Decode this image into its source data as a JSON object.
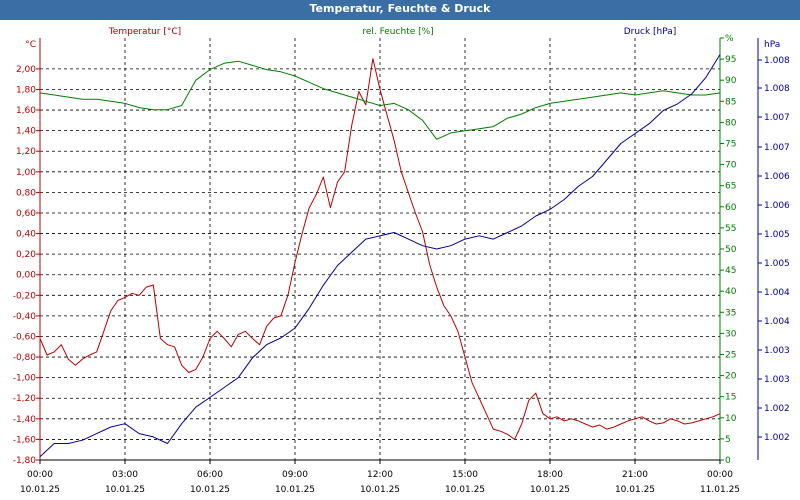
{
  "window": {
    "title": "Temperatur, Feuchte & Druck"
  },
  "chart_data": {
    "type": "line",
    "title": "Temperatur, Feuchte & Druck",
    "grid": true,
    "x_ticks": [
      {
        "time": "00:00",
        "date": "10.01.25"
      },
      {
        "time": "03:00",
        "date": "10.01.25"
      },
      {
        "time": "06:00",
        "date": "10.01.25"
      },
      {
        "time": "09:00",
        "date": "10.01.25"
      },
      {
        "time": "12:00",
        "date": "10.01.25"
      },
      {
        "time": "15:00",
        "date": "10.01.25"
      },
      {
        "time": "18:00",
        "date": "10.01.25"
      },
      {
        "time": "21:00",
        "date": "10.01.25"
      },
      {
        "time": "00:00",
        "date": "11.01.25"
      }
    ],
    "xlim_hours": [
      0,
      24
    ],
    "axes": {
      "temperature": {
        "unit": "°C",
        "label": "Temperatur [°C]",
        "color": "#c00000",
        "ylim": [
          -1.8,
          2.3
        ],
        "ticks": [
          "-1,80",
          "-1,60",
          "-1,40",
          "-1,20",
          "-1,00",
          "-0,80",
          "-0,60",
          "-0,40",
          "-0,20",
          "0,00",
          "0,20",
          "0,40",
          "0,60",
          "0,80",
          "1,00",
          "1,20",
          "1,40",
          "1,60",
          "1,80",
          "2,00"
        ]
      },
      "humidity": {
        "unit": "%",
        "label": "rel. Feuchte [%]",
        "color": "#008000",
        "ylim": [
          0,
          100
        ],
        "ticks": [
          "0",
          "5",
          "10",
          "15",
          "20",
          "25",
          "30",
          "35",
          "40",
          "45",
          "50",
          "55",
          "60",
          "65",
          "70",
          "75",
          "80",
          "85",
          "90",
          "95",
          "%"
        ]
      },
      "pressure": {
        "unit": "hPa",
        "label": "Druck [hPa]",
        "color": "#0000a0",
        "ylim": [
          1001.8,
          1008.2
        ],
        "ticks": [
          "1.002",
          "1.002",
          "1.003",
          "1.003",
          "1.004",
          "1.004",
          "1.005",
          "1.005",
          "1.006",
          "1.006",
          "1.007",
          "1.007",
          "1.008",
          "1.008"
        ]
      }
    },
    "series": [
      {
        "name": "Temperatur [°C]",
        "axis": "temperature",
        "x": [
          0,
          0.25,
          0.5,
          0.75,
          1.0,
          1.25,
          1.5,
          1.75,
          2.0,
          2.25,
          2.5,
          2.75,
          3.0,
          3.25,
          3.5,
          3.75,
          4.0,
          4.25,
          4.5,
          4.75,
          5.0,
          5.25,
          5.5,
          5.75,
          6.0,
          6.25,
          6.5,
          6.75,
          7.0,
          7.25,
          7.5,
          7.75,
          8.0,
          8.25,
          8.5,
          8.75,
          9.0,
          9.25,
          9.5,
          9.75,
          10.0,
          10.25,
          10.5,
          10.75,
          11.0,
          11.25,
          11.5,
          11.75,
          12.0,
          12.25,
          12.5,
          12.75,
          13.0,
          13.25,
          13.5,
          13.75,
          14.0,
          14.25,
          14.5,
          14.75,
          15.0,
          15.25,
          15.5,
          15.75,
          16.0,
          16.25,
          16.5,
          16.75,
          17.0,
          17.25,
          17.5,
          17.75,
          18.0,
          18.25,
          18.5,
          18.75,
          19.0,
          19.25,
          19.5,
          19.75,
          20.0,
          20.25,
          20.5,
          20.75,
          21.0,
          21.25,
          21.5,
          21.75,
          22.0,
          22.25,
          22.5,
          22.75,
          23.0,
          23.25,
          23.5,
          23.75,
          24.0
        ],
        "values": [
          -0.62,
          -0.78,
          -0.75,
          -0.68,
          -0.82,
          -0.88,
          -0.82,
          -0.78,
          -0.75,
          -0.55,
          -0.35,
          -0.25,
          -0.22,
          -0.18,
          -0.2,
          -0.12,
          -0.1,
          -0.62,
          -0.68,
          -0.7,
          -0.88,
          -0.95,
          -0.92,
          -0.8,
          -0.62,
          -0.55,
          -0.62,
          -0.7,
          -0.58,
          -0.55,
          -0.62,
          -0.68,
          -0.5,
          -0.42,
          -0.4,
          -0.2,
          0.12,
          0.4,
          0.65,
          0.78,
          0.95,
          0.65,
          0.9,
          1.0,
          1.45,
          1.78,
          1.65,
          2.1,
          1.8,
          1.55,
          1.3,
          1.0,
          0.8,
          0.6,
          0.42,
          0.1,
          -0.12,
          -0.3,
          -0.4,
          -0.55,
          -0.8,
          -1.05,
          -1.2,
          -1.35,
          -1.5,
          -1.52,
          -1.55,
          -1.6,
          -1.45,
          -1.22,
          -1.15,
          -1.35,
          -1.4,
          -1.38,
          -1.42,
          -1.4,
          -1.42,
          -1.45,
          -1.48,
          -1.46,
          -1.5,
          -1.48,
          -1.45,
          -1.42,
          -1.4,
          -1.38,
          -1.42,
          -1.45,
          -1.44,
          -1.4,
          -1.42,
          -1.45,
          -1.44,
          -1.42,
          -1.4,
          -1.38,
          -1.35
        ]
      },
      {
        "name": "rel. Feuchte [%]",
        "axis": "humidity",
        "x": [
          0,
          0.5,
          1.0,
          1.5,
          2.0,
          2.5,
          3.0,
          3.5,
          4.0,
          4.5,
          5.0,
          5.5,
          6.0,
          6.5,
          7.0,
          7.5,
          8.0,
          8.5,
          9.0,
          9.5,
          10.0,
          10.5,
          11.0,
          11.5,
          12.0,
          12.5,
          13.0,
          13.5,
          14.0,
          14.5,
          15.0,
          15.5,
          16.0,
          16.5,
          17.0,
          17.5,
          18.0,
          18.5,
          19.0,
          19.5,
          20.0,
          20.5,
          21.0,
          21.5,
          22.0,
          22.5,
          23.0,
          23.5,
          24.0
        ],
        "values": [
          87,
          86.5,
          86,
          85.5,
          85.5,
          85,
          84.5,
          83.5,
          83,
          83,
          84,
          90,
          92.5,
          94,
          94.5,
          93.5,
          92.5,
          92,
          91,
          89.5,
          88,
          87,
          86,
          85,
          84,
          84.5,
          83,
          80.5,
          76,
          77.5,
          78,
          78.5,
          79,
          81,
          82,
          83.5,
          84.5,
          85,
          85.5,
          86,
          86.5,
          87,
          86.5,
          87,
          87.5,
          87,
          86.5,
          86.5,
          87
        ]
      },
      {
        "name": "Druck [hPa]",
        "axis": "pressure",
        "x": [
          0,
          0.5,
          1.0,
          1.5,
          2.0,
          2.5,
          3.0,
          3.5,
          4.0,
          4.5,
          5.0,
          5.5,
          6.0,
          6.5,
          7.0,
          7.5,
          8.0,
          8.5,
          9.0,
          9.5,
          10.0,
          10.5,
          11.0,
          11.5,
          12.0,
          12.5,
          13.0,
          13.5,
          14.0,
          14.5,
          15.0,
          15.5,
          16.0,
          16.5,
          17.0,
          17.5,
          18.0,
          18.5,
          19.0,
          19.5,
          20.0,
          20.5,
          21.0,
          21.5,
          22.0,
          22.5,
          23.0,
          23.5,
          24.0
        ],
        "values": [
          1001.85,
          1002.05,
          1002.05,
          1002.1,
          1002.2,
          1002.3,
          1002.35,
          1002.2,
          1002.15,
          1002.05,
          1002.35,
          1002.6,
          1002.75,
          1002.9,
          1003.05,
          1003.35,
          1003.55,
          1003.65,
          1003.8,
          1004.1,
          1004.45,
          1004.75,
          1004.95,
          1005.15,
          1005.2,
          1005.25,
          1005.15,
          1005.05,
          1005.0,
          1005.05,
          1005.15,
          1005.2,
          1005.15,
          1005.25,
          1005.35,
          1005.5,
          1005.6,
          1005.75,
          1005.95,
          1006.1,
          1006.35,
          1006.6,
          1006.75,
          1006.9,
          1007.1,
          1007.2,
          1007.35,
          1007.6,
          1007.95
        ]
      }
    ]
  }
}
